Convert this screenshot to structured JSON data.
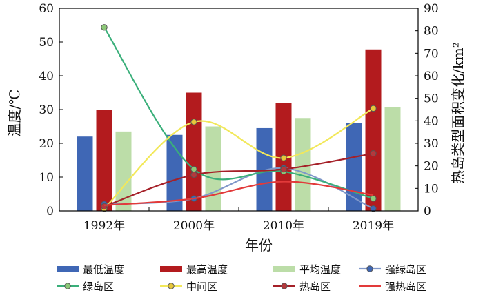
{
  "chart_data": {
    "type": "bar",
    "categories": [
      "1992年",
      "2000年",
      "2010年",
      "2019年"
    ],
    "xlabel": "年份",
    "ylabel": "温度/℃",
    "y2label": "热岛类型面积变化/km²",
    "ylim": [
      0,
      60
    ],
    "yticks": [
      "0",
      "10",
      "20",
      "30",
      "40",
      "50",
      "60"
    ],
    "y2lim": [
      0,
      90
    ],
    "y2ticks": [
      "0",
      "10",
      "20",
      "30",
      "40",
      "50",
      "60",
      "70",
      "80",
      "90"
    ],
    "legend_position": "bottom",
    "bar_series": [
      {
        "name": "最低温度",
        "color": "#3F67B5",
        "values": [
          22.0,
          22.5,
          24.5,
          26.0
        ]
      },
      {
        "name": "最高温度",
        "color": "#B31B1E",
        "values": [
          30.0,
          35.0,
          32.0,
          47.8
        ]
      },
      {
        "name": "平均温度",
        "color": "#BCDDA8",
        "values": [
          23.5,
          25.0,
          27.5,
          30.7
        ]
      }
    ],
    "line_series": [
      {
        "name": "强绿岛区",
        "color": "#7F97C9",
        "marker_fill": "#3F67B5",
        "marker": true,
        "values": [
          3.0,
          5.5,
          19.0,
          1.0
        ]
      },
      {
        "name": "绿岛区",
        "color": "#3AAF7A",
        "marker_fill": "#8DC878",
        "marker": true,
        "values": [
          81.5,
          18.5,
          17.5,
          5.5
        ]
      },
      {
        "name": "中间区",
        "color": "#F2E85A",
        "marker_fill": "#E7C63A",
        "marker": true,
        "values": [
          1.0,
          39.5,
          23.5,
          45.5
        ]
      },
      {
        "name": "热岛区",
        "color": "#A52028",
        "marker_fill": "#B5383C",
        "marker": true,
        "values": [
          2.0,
          16.0,
          18.5,
          25.5
        ]
      },
      {
        "name": "强热岛区",
        "color": "#E23A3A",
        "marker_fill": "#E23A3A",
        "marker": false,
        "values": [
          2.5,
          5.5,
          13.0,
          7.0
        ]
      }
    ]
  }
}
